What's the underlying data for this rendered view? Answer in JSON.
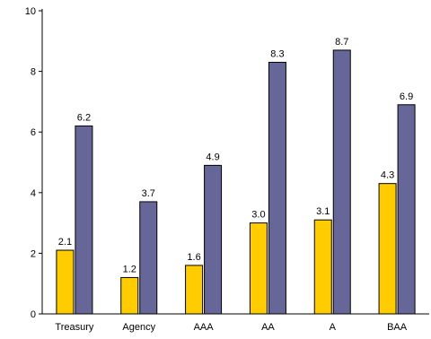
{
  "chart_data": {
    "type": "bar",
    "title": "",
    "xlabel": "",
    "ylabel": "",
    "categories": [
      "Treasury",
      "Agency",
      "AAA",
      "AA",
      "A",
      "BAA"
    ],
    "series": [
      {
        "values": [
          2.1,
          1.2,
          1.6,
          3.0,
          3.1,
          4.3
        ],
        "color": "#FFCC00"
      },
      {
        "values": [
          6.2,
          3.7,
          4.9,
          8.3,
          8.7,
          6.9
        ],
        "color": "#666699"
      }
    ],
    "ylim": [
      0,
      10
    ],
    "yticks": [
      0,
      2,
      4,
      6,
      8,
      10
    ],
    "data_labels": [
      [
        "2.1",
        "1.2",
        "1.6",
        "3.0",
        "3.1",
        "4.3"
      ],
      [
        "6.2",
        "3.7",
        "4.9",
        "8.3",
        "8.7",
        "6.9"
      ]
    ],
    "grid": false,
    "legend": "none"
  }
}
